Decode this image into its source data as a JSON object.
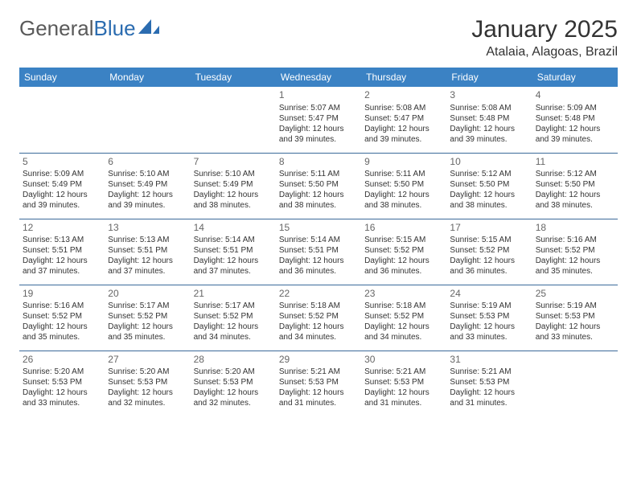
{
  "logo": {
    "text1": "General",
    "text2": "Blue"
  },
  "title": "January 2025",
  "location": "Atalaia, Alagoas, Brazil",
  "colors": {
    "header_bg": "#3b82c4",
    "header_text": "#ffffff",
    "border": "#3b6a9a",
    "daynum": "#666666",
    "body_text": "#333333",
    "logo_gray": "#5a5a5a",
    "logo_blue": "#2b6cb0"
  },
  "day_labels": [
    "Sunday",
    "Monday",
    "Tuesday",
    "Wednesday",
    "Thursday",
    "Friday",
    "Saturday"
  ],
  "weeks": [
    [
      {
        "n": "",
        "sr": "",
        "ss": "",
        "dl": ""
      },
      {
        "n": "",
        "sr": "",
        "ss": "",
        "dl": ""
      },
      {
        "n": "",
        "sr": "",
        "ss": "",
        "dl": ""
      },
      {
        "n": "1",
        "sr": "Sunrise: 5:07 AM",
        "ss": "Sunset: 5:47 PM",
        "dl": "Daylight: 12 hours and 39 minutes."
      },
      {
        "n": "2",
        "sr": "Sunrise: 5:08 AM",
        "ss": "Sunset: 5:47 PM",
        "dl": "Daylight: 12 hours and 39 minutes."
      },
      {
        "n": "3",
        "sr": "Sunrise: 5:08 AM",
        "ss": "Sunset: 5:48 PM",
        "dl": "Daylight: 12 hours and 39 minutes."
      },
      {
        "n": "4",
        "sr": "Sunrise: 5:09 AM",
        "ss": "Sunset: 5:48 PM",
        "dl": "Daylight: 12 hours and 39 minutes."
      }
    ],
    [
      {
        "n": "5",
        "sr": "Sunrise: 5:09 AM",
        "ss": "Sunset: 5:49 PM",
        "dl": "Daylight: 12 hours and 39 minutes."
      },
      {
        "n": "6",
        "sr": "Sunrise: 5:10 AM",
        "ss": "Sunset: 5:49 PM",
        "dl": "Daylight: 12 hours and 39 minutes."
      },
      {
        "n": "7",
        "sr": "Sunrise: 5:10 AM",
        "ss": "Sunset: 5:49 PM",
        "dl": "Daylight: 12 hours and 38 minutes."
      },
      {
        "n": "8",
        "sr": "Sunrise: 5:11 AM",
        "ss": "Sunset: 5:50 PM",
        "dl": "Daylight: 12 hours and 38 minutes."
      },
      {
        "n": "9",
        "sr": "Sunrise: 5:11 AM",
        "ss": "Sunset: 5:50 PM",
        "dl": "Daylight: 12 hours and 38 minutes."
      },
      {
        "n": "10",
        "sr": "Sunrise: 5:12 AM",
        "ss": "Sunset: 5:50 PM",
        "dl": "Daylight: 12 hours and 38 minutes."
      },
      {
        "n": "11",
        "sr": "Sunrise: 5:12 AM",
        "ss": "Sunset: 5:50 PM",
        "dl": "Daylight: 12 hours and 38 minutes."
      }
    ],
    [
      {
        "n": "12",
        "sr": "Sunrise: 5:13 AM",
        "ss": "Sunset: 5:51 PM",
        "dl": "Daylight: 12 hours and 37 minutes."
      },
      {
        "n": "13",
        "sr": "Sunrise: 5:13 AM",
        "ss": "Sunset: 5:51 PM",
        "dl": "Daylight: 12 hours and 37 minutes."
      },
      {
        "n": "14",
        "sr": "Sunrise: 5:14 AM",
        "ss": "Sunset: 5:51 PM",
        "dl": "Daylight: 12 hours and 37 minutes."
      },
      {
        "n": "15",
        "sr": "Sunrise: 5:14 AM",
        "ss": "Sunset: 5:51 PM",
        "dl": "Daylight: 12 hours and 36 minutes."
      },
      {
        "n": "16",
        "sr": "Sunrise: 5:15 AM",
        "ss": "Sunset: 5:52 PM",
        "dl": "Daylight: 12 hours and 36 minutes."
      },
      {
        "n": "17",
        "sr": "Sunrise: 5:15 AM",
        "ss": "Sunset: 5:52 PM",
        "dl": "Daylight: 12 hours and 36 minutes."
      },
      {
        "n": "18",
        "sr": "Sunrise: 5:16 AM",
        "ss": "Sunset: 5:52 PM",
        "dl": "Daylight: 12 hours and 35 minutes."
      }
    ],
    [
      {
        "n": "19",
        "sr": "Sunrise: 5:16 AM",
        "ss": "Sunset: 5:52 PM",
        "dl": "Daylight: 12 hours and 35 minutes."
      },
      {
        "n": "20",
        "sr": "Sunrise: 5:17 AM",
        "ss": "Sunset: 5:52 PM",
        "dl": "Daylight: 12 hours and 35 minutes."
      },
      {
        "n": "21",
        "sr": "Sunrise: 5:17 AM",
        "ss": "Sunset: 5:52 PM",
        "dl": "Daylight: 12 hours and 34 minutes."
      },
      {
        "n": "22",
        "sr": "Sunrise: 5:18 AM",
        "ss": "Sunset: 5:52 PM",
        "dl": "Daylight: 12 hours and 34 minutes."
      },
      {
        "n": "23",
        "sr": "Sunrise: 5:18 AM",
        "ss": "Sunset: 5:52 PM",
        "dl": "Daylight: 12 hours and 34 minutes."
      },
      {
        "n": "24",
        "sr": "Sunrise: 5:19 AM",
        "ss": "Sunset: 5:53 PM",
        "dl": "Daylight: 12 hours and 33 minutes."
      },
      {
        "n": "25",
        "sr": "Sunrise: 5:19 AM",
        "ss": "Sunset: 5:53 PM",
        "dl": "Daylight: 12 hours and 33 minutes."
      }
    ],
    [
      {
        "n": "26",
        "sr": "Sunrise: 5:20 AM",
        "ss": "Sunset: 5:53 PM",
        "dl": "Daylight: 12 hours and 33 minutes."
      },
      {
        "n": "27",
        "sr": "Sunrise: 5:20 AM",
        "ss": "Sunset: 5:53 PM",
        "dl": "Daylight: 12 hours and 32 minutes."
      },
      {
        "n": "28",
        "sr": "Sunrise: 5:20 AM",
        "ss": "Sunset: 5:53 PM",
        "dl": "Daylight: 12 hours and 32 minutes."
      },
      {
        "n": "29",
        "sr": "Sunrise: 5:21 AM",
        "ss": "Sunset: 5:53 PM",
        "dl": "Daylight: 12 hours and 31 minutes."
      },
      {
        "n": "30",
        "sr": "Sunrise: 5:21 AM",
        "ss": "Sunset: 5:53 PM",
        "dl": "Daylight: 12 hours and 31 minutes."
      },
      {
        "n": "31",
        "sr": "Sunrise: 5:21 AM",
        "ss": "Sunset: 5:53 PM",
        "dl": "Daylight: 12 hours and 31 minutes."
      },
      {
        "n": "",
        "sr": "",
        "ss": "",
        "dl": ""
      }
    ]
  ]
}
